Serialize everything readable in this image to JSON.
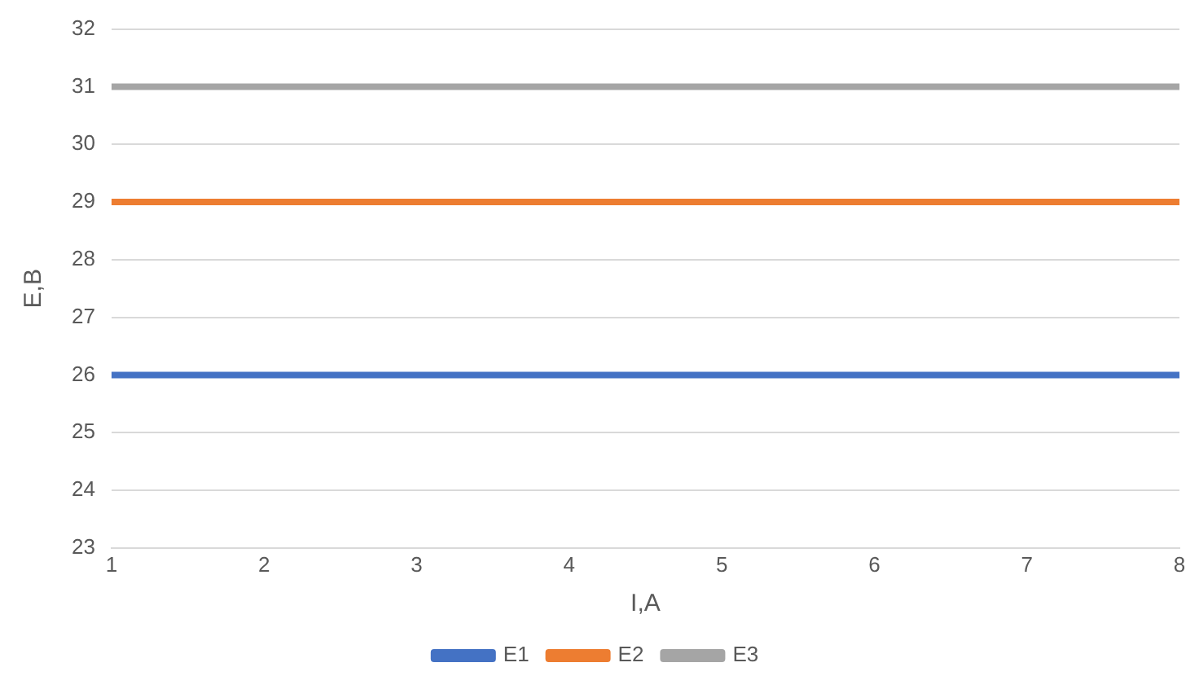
{
  "chart_data": {
    "type": "line",
    "xlabel": "I,A",
    "ylabel": "E,B",
    "categories": [
      "1",
      "2",
      "3",
      "4",
      "5",
      "6",
      "7",
      "8"
    ],
    "series": [
      {
        "name": "E1",
        "color": "#4472c4",
        "values": [
          26,
          26,
          26,
          26,
          26,
          26,
          26,
          26
        ]
      },
      {
        "name": "E2",
        "color": "#ed7d31",
        "values": [
          29,
          29,
          29,
          29,
          29,
          29,
          29,
          29
        ]
      },
      {
        "name": "E3",
        "color": "#a5a5a5",
        "values": [
          31,
          31,
          31,
          31,
          31,
          31,
          31,
          31
        ]
      }
    ],
    "ylim": [
      23,
      32
    ],
    "yticks": [
      23,
      24,
      25,
      26,
      27,
      28,
      29,
      30,
      31,
      32
    ],
    "grid": "y",
    "legend": "bottom",
    "marker": "none",
    "line_style": "solid"
  }
}
